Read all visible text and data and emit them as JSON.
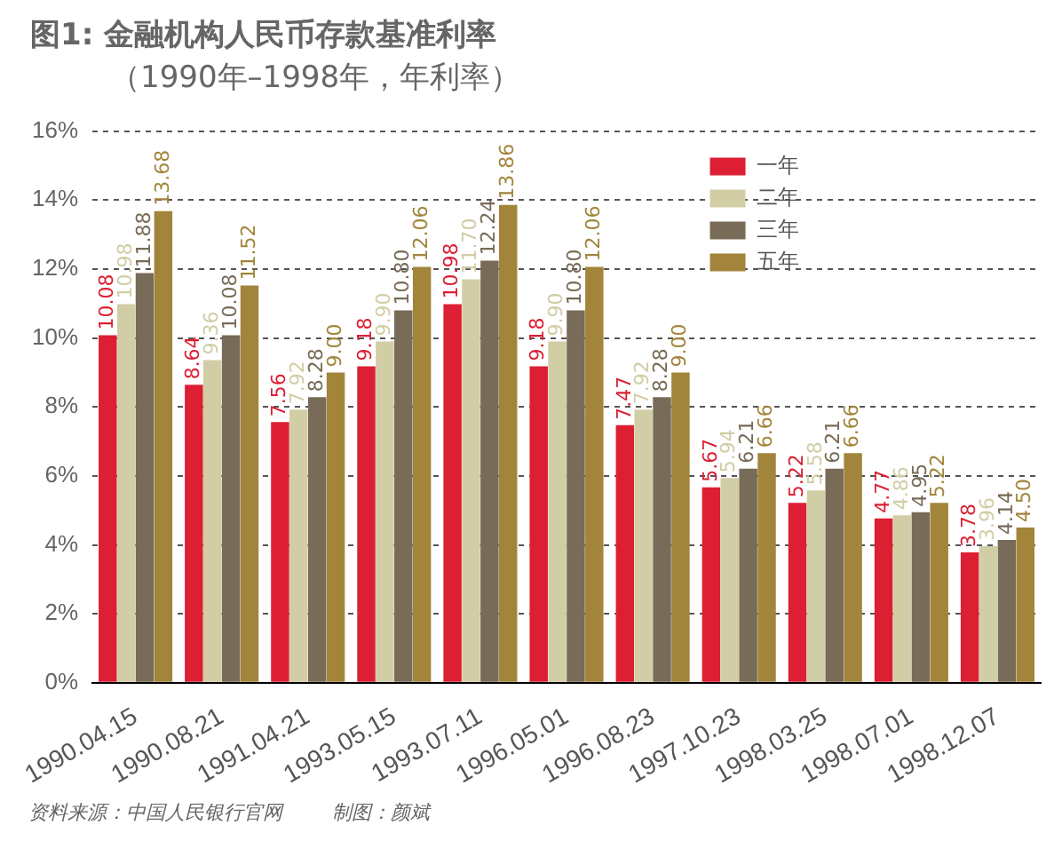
{
  "chart_data": {
    "type": "bar",
    "title": "图1: 金融机构人民币存款基准利率",
    "subtitle": "（1990年–1998年，年利率）",
    "categories": [
      "1990.04.15",
      "1990.08.21",
      "1991.04.21",
      "1993.05.15",
      "1993.07.11",
      "1996.05.01",
      "1996.08.23",
      "1997.10.23",
      "1998.03.25",
      "1998.07.01",
      "1998.12.07"
    ],
    "series": [
      {
        "name": "一年",
        "color": "#dc1f33",
        "values": [
          10.08,
          8.64,
          7.56,
          9.18,
          10.98,
          9.18,
          7.47,
          5.67,
          5.22,
          4.77,
          3.78
        ],
        "value_labels": [
          "10.08",
          "8.64",
          "7.56",
          "9.18",
          "10.98",
          "9.18",
          "7.47",
          "5.67",
          "5.22",
          "4.77",
          "3.78"
        ]
      },
      {
        "name": "二年",
        "color": "#d1cda5",
        "values": [
          10.98,
          9.36,
          7.92,
          9.9,
          11.7,
          9.9,
          7.92,
          5.94,
          5.58,
          4.86,
          3.96
        ],
        "value_labels": [
          "10.98",
          "9.36",
          "7.92",
          "9.90",
          "11.70",
          "9.90",
          "7.92",
          "5.94",
          "5.58",
          "4.86",
          "3.96"
        ]
      },
      {
        "name": "三年",
        "color": "#786b57",
        "values": [
          11.88,
          10.08,
          8.28,
          10.8,
          12.24,
          10.8,
          8.28,
          6.21,
          6.21,
          4.95,
          4.14
        ],
        "value_labels": [
          "11.88",
          "10.08",
          "8.28",
          "10.80",
          "12.24",
          "10.80",
          "8.28",
          "6.21",
          "6.21",
          "4.95",
          "4.14"
        ]
      },
      {
        "name": "五年",
        "color": "#a2853b",
        "values": [
          13.68,
          11.52,
          9.0,
          12.06,
          13.86,
          12.06,
          9.0,
          6.66,
          6.66,
          5.22,
          4.5
        ],
        "value_labels": [
          "13.68",
          "11.52",
          "9.00",
          "12.06",
          "13.86",
          "12.06",
          "9.00",
          "6.66",
          "6.66",
          "5.22",
          "4.50"
        ]
      }
    ],
    "ylim": [
      0,
      16
    ],
    "yticks": [
      {
        "value": 0,
        "label": "0%"
      },
      {
        "value": 2,
        "label": "2%"
      },
      {
        "value": 4,
        "label": "4%"
      },
      {
        "value": 6,
        "label": "6%"
      },
      {
        "value": 8,
        "label": "8%"
      },
      {
        "value": 10,
        "label": "10%"
      },
      {
        "value": 12,
        "label": "12%"
      },
      {
        "value": 14,
        "label": "14%"
      },
      {
        "value": 16,
        "label": "16%"
      }
    ],
    "grid": "y",
    "legend": "top right",
    "annotations": [
      "资料来源：中国人民银行官网",
      "制图：颜斌"
    ]
  }
}
